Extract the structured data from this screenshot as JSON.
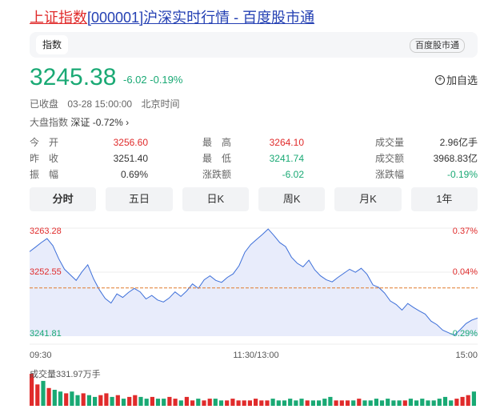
{
  "title": {
    "name": "上证指数",
    "code": "[000001]",
    "suffix": "沪深实时行情 - 百度股市通"
  },
  "header": {
    "tag": "指数",
    "brand": "百度股市通"
  },
  "quote": {
    "price": "3245.38",
    "change": "-6.02",
    "change_pct": "-0.19%",
    "add_label": "加自选"
  },
  "status": {
    "state": "已收盘",
    "datetime": "03-28 15:00:00",
    "timezone": "北京时间"
  },
  "market": {
    "label": "大盘指数",
    "name": "深证",
    "value": "-0.72%"
  },
  "stats": [
    {
      "label": "今　开",
      "value": "3256.60",
      "cls": "up"
    },
    {
      "label": "最　高",
      "value": "3264.10",
      "cls": "up"
    },
    {
      "label": "成交量",
      "value": "2.96亿手",
      "cls": "dark"
    },
    {
      "label": "昨　收",
      "value": "3251.40",
      "cls": "dark"
    },
    {
      "label": "最　低",
      "value": "3241.74",
      "cls": "down"
    },
    {
      "label": "成交额",
      "value": "3968.83亿",
      "cls": "dark"
    },
    {
      "label": "振　幅",
      "value": "0.69%",
      "cls": "dark"
    },
    {
      "label": "涨跌额",
      "value": "-6.02",
      "cls": "down"
    },
    {
      "label": "涨跌幅",
      "value": "-0.19%",
      "cls": "down"
    }
  ],
  "tabs": [
    "分时",
    "五日",
    "日K",
    "周K",
    "月K",
    "1年"
  ],
  "chart": {
    "y_top": "3263.28",
    "y_mid": "3252.55",
    "y_bot": "3241.81",
    "pct_top": "0.37%",
    "pct_mid": "0.04%",
    "pct_bot": "-0.29%",
    "x_start": "09:30",
    "x_mid": "11:30/13:00",
    "x_end": "15:00",
    "volume_label": "成交量331.97万手"
  },
  "chart_data": {
    "type": "line",
    "title": "",
    "ylim": [
      3241.81,
      3263.28
    ],
    "baseline": 3251.4,
    "x_ticks": [
      "09:30",
      "11:30/13:00",
      "15:00"
    ],
    "series": [
      {
        "values": [
          3258.6,
          3259.5,
          3260.4,
          3261.2,
          3259.8,
          3257.2,
          3255.1,
          3254.0,
          3252.9,
          3254.6,
          3256.0,
          3253.2,
          3251.0,
          3249.3,
          3248.4,
          3250.2,
          3249.5,
          3250.5,
          3251.3,
          3250.6,
          3249.2,
          3249.9,
          3249.0,
          3248.6,
          3249.4,
          3250.6,
          3249.7,
          3250.8,
          3252.2,
          3251.3,
          3253.0,
          3253.8,
          3252.9,
          3252.5,
          3253.5,
          3254.2,
          3255.8,
          3258.5,
          3260.0,
          3261.0,
          3262.0,
          3263.1,
          3261.8,
          3260.4,
          3259.6,
          3257.5,
          3256.3,
          3255.6,
          3256.9,
          3255.0,
          3253.8,
          3253.0,
          3252.6,
          3253.5,
          3254.3,
          3255.1,
          3254.5,
          3255.3,
          3254.1,
          3252.0,
          3251.5,
          3250.4,
          3248.8,
          3248.1,
          3247.0,
          3248.3,
          3247.5,
          3246.8,
          3246.2,
          3244.8,
          3244.1,
          3243.0,
          3242.5,
          3242.0,
          3243.1,
          3244.3,
          3245.0,
          3245.4
        ]
      }
    ],
    "volume": [
      18,
      12,
      14,
      10,
      9,
      8,
      7,
      8,
      6,
      7,
      6,
      5,
      6,
      7,
      5,
      6,
      4,
      5,
      6,
      5,
      4,
      5,
      4,
      4,
      5,
      4,
      3,
      5,
      3,
      4,
      3,
      4,
      4,
      3,
      3,
      4,
      3,
      3,
      3,
      4,
      3,
      3,
      4,
      3,
      3,
      4,
      3,
      4,
      3,
      3,
      3,
      4,
      5,
      3,
      3,
      3,
      3,
      4,
      3,
      3,
      4,
      3,
      4,
      3,
      3,
      3,
      4,
      3,
      4,
      3,
      3,
      4,
      5,
      3,
      4,
      5,
      6,
      8
    ],
    "volume_colors": [
      "up",
      "up",
      "down",
      "up",
      "down",
      "down",
      "up",
      "down",
      "down",
      "up",
      "down",
      "down",
      "up",
      "up",
      "down",
      "up",
      "down",
      "up",
      "up",
      "down",
      "down",
      "up",
      "down",
      "down",
      "up",
      "up",
      "down",
      "up",
      "up",
      "down",
      "up",
      "up",
      "down",
      "down",
      "up",
      "up",
      "up",
      "up",
      "up",
      "up",
      "up",
      "up",
      "down",
      "down",
      "down",
      "down",
      "down",
      "down",
      "up",
      "down",
      "down",
      "down",
      "down",
      "up",
      "up",
      "up",
      "down",
      "up",
      "down",
      "down",
      "down",
      "down",
      "down",
      "down",
      "down",
      "up",
      "down",
      "down",
      "down",
      "down",
      "down",
      "down",
      "down",
      "down",
      "up",
      "up",
      "up",
      "down"
    ]
  },
  "colors": {
    "up": "#e02b2b",
    "down": "#19a974",
    "line": "#3d6fd9",
    "fill": "#e8ecfb",
    "baseline": "#e07a2c"
  }
}
